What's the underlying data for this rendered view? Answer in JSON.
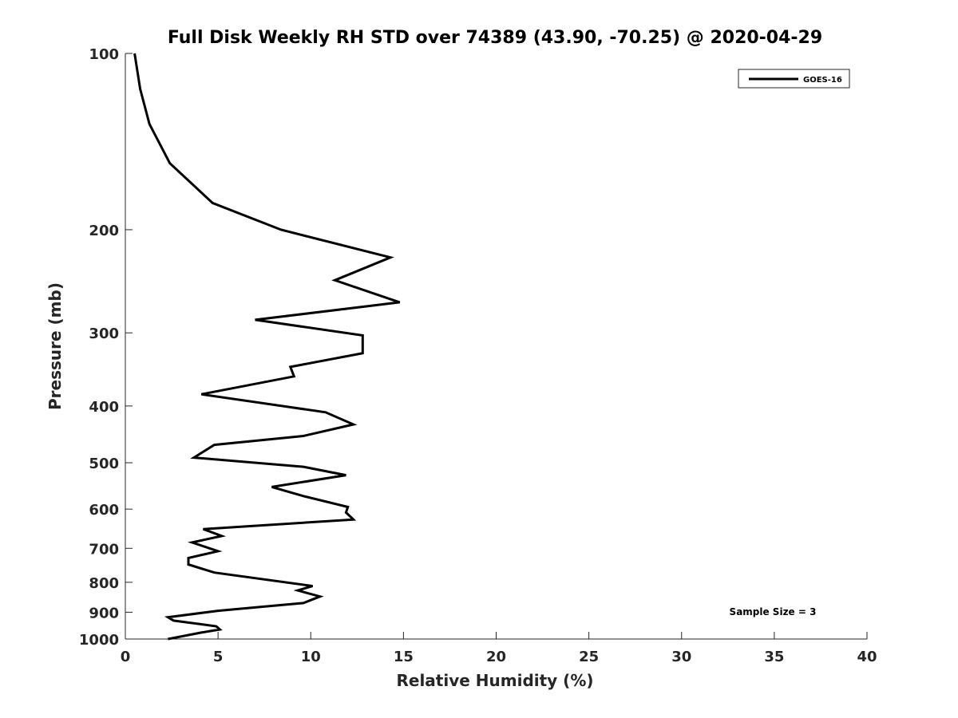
{
  "chart_data": {
    "type": "line",
    "title": "Full Disk Weekly RH STD over 74389 (43.90, -70.25) @ 2020-04-29",
    "xlabel": "Relative Humidity (%)",
    "ylabel": "Pressure (mb)",
    "xlim": [
      0,
      40
    ],
    "ylim": [
      100,
      1000
    ],
    "yscale": "log",
    "y_reversed": true,
    "grid": false,
    "legend_position": "top-right",
    "x_ticks": [
      "0",
      "5",
      "10",
      "15",
      "20",
      "25",
      "30",
      "35",
      "40"
    ],
    "y_ticks": [
      "100",
      "200",
      "300",
      "400",
      "500",
      "600",
      "700",
      "800",
      "900",
      "1000"
    ],
    "annotation": "Sample Size = 3",
    "series": [
      {
        "name": "GOES-16",
        "color": "#000000",
        "x": [
          0.5,
          0.8,
          1.3,
          2.4,
          4.7,
          8.4,
          14.3,
          11.3,
          14.8,
          7.0,
          12.8,
          12.8,
          8.9,
          9.1,
          4.1,
          10.8,
          12.3,
          9.6,
          4.8,
          3.7,
          9.6,
          11.9,
          7.9,
          9.6,
          12.0,
          11.9,
          12.3,
          4.2,
          5.2,
          3.6,
          5.0,
          3.4,
          3.4,
          4.8,
          10.1,
          9.3,
          10.5,
          9.6,
          5.0,
          2.3,
          2.6,
          4.9,
          5.1,
          4.1,
          2.3
        ],
        "y": [
          100,
          115,
          132,
          154,
          180,
          200,
          223,
          244,
          266,
          285,
          303,
          325,
          343,
          356,
          382,
          410,
          430,
          450,
          466,
          490,
          508,
          525,
          550,
          570,
          595,
          608,
          625,
          649,
          667,
          684,
          708,
          727,
          746,
          770,
          812,
          826,
          846,
          868,
          895,
          918,
          930,
          951,
          963,
          975,
          1000
        ]
      }
    ]
  }
}
